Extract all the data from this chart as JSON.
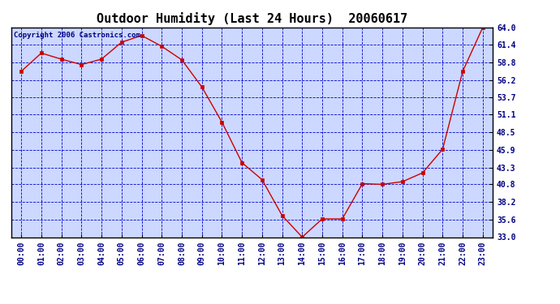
{
  "title": "Outdoor Humidity (Last 24 Hours)  20060617",
  "copyright_text": "Copyright 2006 Castronics.com",
  "x_labels": [
    "00:00",
    "01:00",
    "02:00",
    "03:00",
    "04:00",
    "05:00",
    "06:00",
    "07:00",
    "08:00",
    "09:00",
    "10:00",
    "11:00",
    "12:00",
    "13:00",
    "14:00",
    "15:00",
    "16:00",
    "17:00",
    "18:00",
    "19:00",
    "20:00",
    "21:00",
    "22:00",
    "23:00"
  ],
  "y_values": [
    57.5,
    60.2,
    59.3,
    58.5,
    59.3,
    61.8,
    62.8,
    61.2,
    59.2,
    55.2,
    50.0,
    44.0,
    41.5,
    36.2,
    33.0,
    35.7,
    35.7,
    40.9,
    40.8,
    41.2,
    42.5,
    46.0,
    57.5,
    64.0
  ],
  "line_color": "#cc0000",
  "marker_color": "#cc0000",
  "fig_bg_color": "#ffffff",
  "plot_bg_color": "#ccd8ff",
  "grid_color": "#0000cc",
  "title_color": "#000000",
  "border_color": "#000000",
  "tick_label_color": "#000080",
  "copyright_color": "#000080",
  "ytick_labels": [
    "64.0",
    "61.4",
    "58.8",
    "56.2",
    "53.7",
    "51.1",
    "48.5",
    "45.9",
    "43.3",
    "40.8",
    "38.2",
    "35.6",
    "33.0"
  ],
  "ytick_values": [
    64.0,
    61.4,
    58.8,
    56.2,
    53.7,
    51.1,
    48.5,
    45.9,
    43.3,
    40.8,
    38.2,
    35.6,
    33.0
  ],
  "ylim": [
    33.0,
    64.0
  ],
  "title_fontsize": 11,
  "axis_fontsize": 7,
  "copyright_fontsize": 6.5
}
